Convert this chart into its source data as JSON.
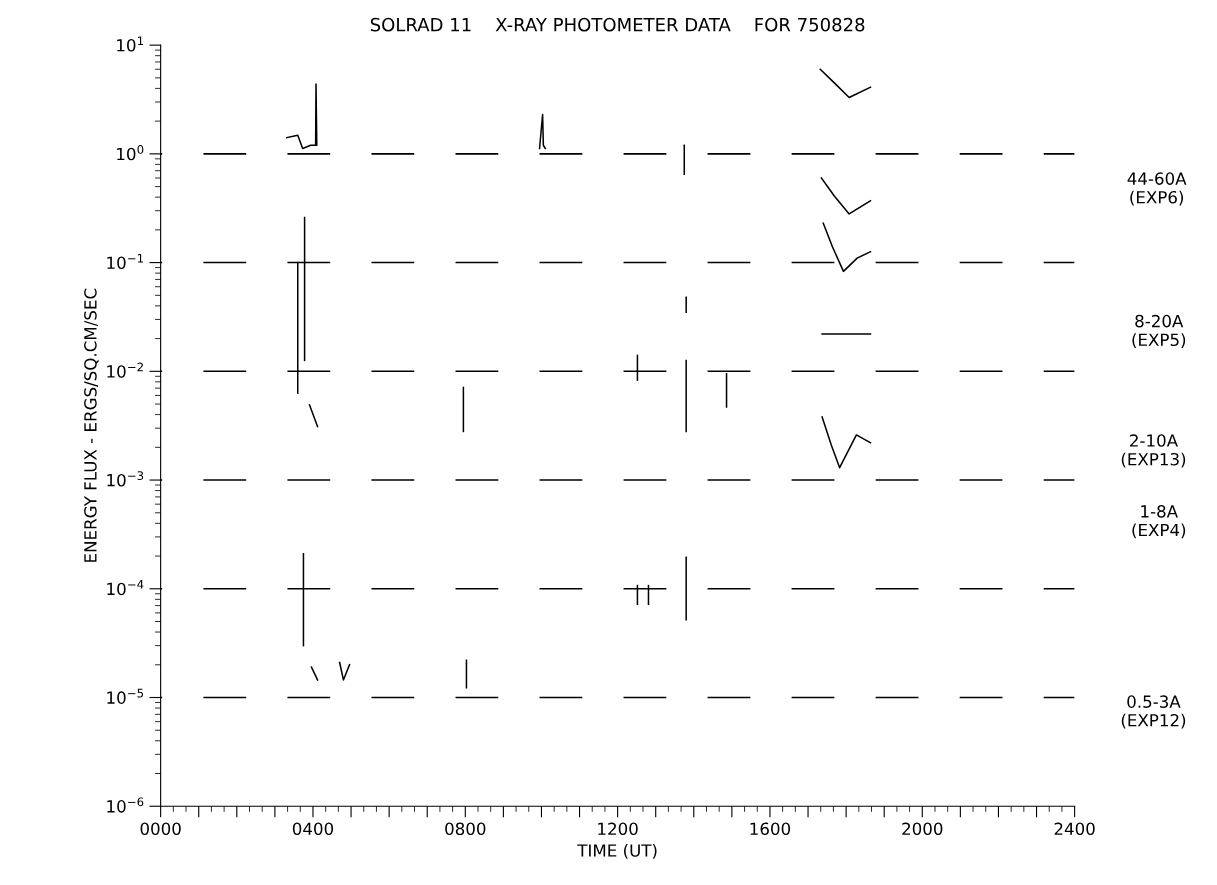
{
  "chart_data": {
    "type": "line",
    "title": "SOLRAD 11    X-RAY PHOTOMETER DATA    FOR 750828",
    "xlabel": "TIME (UT)",
    "ylabel": "ENERGY FLUX - ERGS/SQ.CM/SEC",
    "log": "y",
    "xlim": [
      0,
      2400
    ],
    "xticks": [
      {
        "value": 0,
        "label": "0000"
      },
      {
        "value": 100,
        "label": null
      },
      {
        "value": 200,
        "label": null
      },
      {
        "value": 300,
        "label": null
      },
      {
        "value": 400,
        "label": "0400"
      },
      {
        "value": 500,
        "label": null
      },
      {
        "value": 600,
        "label": null
      },
      {
        "value": 700,
        "label": null
      },
      {
        "value": 800,
        "label": "0800"
      },
      {
        "value": 900,
        "label": null
      },
      {
        "value": 1000,
        "label": null
      },
      {
        "value": 1100,
        "label": null
      },
      {
        "value": 1200,
        "label": "1200"
      },
      {
        "value": 1300,
        "label": null
      },
      {
        "value": 1400,
        "label": null
      },
      {
        "value": 1500,
        "label": null
      },
      {
        "value": 1600,
        "label": "1600"
      },
      {
        "value": 1700,
        "label": null
      },
      {
        "value": 1800,
        "label": null
      },
      {
        "value": 1900,
        "label": null
      },
      {
        "value": 2000,
        "label": "2000"
      },
      {
        "value": 2100,
        "label": null
      },
      {
        "value": 2200,
        "label": null
      },
      {
        "value": 2300,
        "label": null
      },
      {
        "value": 2400,
        "label": "2400"
      }
    ],
    "ylim": [
      1e-06,
      10
    ],
    "yticks": [
      {
        "value": 1e-06,
        "label": "10$^{−6}$"
      },
      {
        "value": 1e-05,
        "label": "10$^{−5}$"
      },
      {
        "value": 0.0001,
        "label": "10$^{−4}$"
      },
      {
        "value": 0.001,
        "label": "10$^{−3}$"
      },
      {
        "value": 0.01,
        "label": "10$^{−2}$"
      },
      {
        "value": 0.1,
        "label": "10$^{−1}$"
      },
      {
        "value": 1,
        "label": "10$^{0}$"
      },
      {
        "value": 10,
        "label": "10$^{1}$"
      }
    ],
    "ref_lines": [
      {
        "axis": "y",
        "value": 1,
        "color": "#000000",
        "line_style": "dashed"
      },
      {
        "axis": "y",
        "value": 0.1,
        "color": "#000000",
        "line_style": "dashed"
      },
      {
        "axis": "y",
        "value": 0.01,
        "color": "#000000",
        "line_style": "dashed"
      },
      {
        "axis": "y",
        "value": 0.001,
        "color": "#000000",
        "line_style": "dashed"
      },
      {
        "axis": "y",
        "value": 0.0001,
        "color": "#000000",
        "line_style": "dashed"
      },
      {
        "axis": "y",
        "value": 1e-05,
        "color": "#000000",
        "line_style": "dashed"
      }
    ],
    "annotations": [
      "44-60A\n(EXP6)",
      "8-20A\n(EXP5)",
      "2-10A\n(EXP13)",
      "1-8A\n(EXP4)",
      "0.5-3A\n(EXP12)"
    ],
    "series": [
      {
        "color": "#000000",
        "x": [
          331,
          360,
          373,
          394,
          407,
          408,
          410
        ],
        "values": [
          1.41,
          1.48,
          1.12,
          1.2,
          1.2,
          4.4,
          1.2
        ]
      },
      {
        "color": "#000000",
        "x": [
          995,
          1003,
          1005,
          1010
        ],
        "values": [
          1.12,
          2.3,
          1.2,
          1.12
        ]
      },
      {
        "color": "#000000",
        "x": [
          1375,
          1375
        ],
        "values": [
          1.2,
          0.65
        ]
      },
      {
        "color": "#000000",
        "x": [
          1732,
          1769,
          1808,
          1864
        ],
        "values": [
          6.0,
          4.5,
          3.3,
          4.1
        ]
      },
      {
        "color": "#000000",
        "x": [
          1735,
          1769,
          1808,
          1864
        ],
        "values": [
          0.6,
          0.41,
          0.28,
          0.37
        ]
      },
      {
        "color": "#000000",
        "x": [
          1740,
          1764,
          1793,
          1829,
          1864
        ],
        "values": [
          0.23,
          0.14,
          0.083,
          0.11,
          0.126
        ]
      },
      {
        "color": "#000000",
        "x": [
          1737,
          1864
        ],
        "values": [
          0.022,
          0.022
        ]
      },
      {
        "color": "#000000",
        "x": [
          1737,
          1761,
          1783,
          1827,
          1864
        ],
        "values": [
          0.0038,
          0.0021,
          0.0013,
          0.0026,
          0.0022
        ]
      },
      {
        "color": "#000000",
        "x": [
          378,
          378
        ],
        "values": [
          0.26,
          0.0126
        ]
      },
      {
        "color": "#000000",
        "x": [
          360,
          360
        ],
        "values": [
          0.1,
          0.0063
        ]
      },
      {
        "color": "#000000",
        "x": [
          391,
          412
        ],
        "values": [
          0.0049,
          0.0031
        ]
      },
      {
        "color": "#000000",
        "x": [
          1380,
          1380
        ],
        "values": [
          0.048,
          0.035
        ]
      },
      {
        "color": "#000000",
        "x": [
          1380,
          1380
        ],
        "values": [
          0.0126,
          0.0028
        ]
      },
      {
        "color": "#000000",
        "x": [
          795,
          795
        ],
        "values": [
          0.0071,
          0.0028
        ]
      },
      {
        "color": "#000000",
        "x": [
          1252,
          1252
        ],
        "values": [
          0.014,
          0.0083
        ]
      },
      {
        "color": "#000000",
        "x": [
          1486,
          1486
        ],
        "values": [
          0.0095,
          0.0047
        ]
      },
      {
        "color": "#000000",
        "x": [
          375,
          375
        ],
        "values": [
          0.00021,
          3e-05
        ]
      },
      {
        "color": "#000000",
        "x": [
          1380,
          1380
        ],
        "values": [
          0.000195,
          5.2e-05
        ]
      },
      {
        "color": "#000000",
        "x": [
          1252,
          1252
        ],
        "values": [
          0.000107,
          7.2e-05
        ]
      },
      {
        "color": "#000000",
        "x": [
          1281,
          1281
        ],
        "values": [
          0.000107,
          7.2e-05
        ]
      },
      {
        "color": "#000000",
        "x": [
          803,
          803
        ],
        "values": [
          2.2e-05,
          1.23e-05
        ]
      },
      {
        "color": "#000000",
        "x": [
          396,
          412
        ],
        "values": [
          1.9e-05,
          1.45e-05
        ]
      },
      {
        "color": "#000000",
        "x": [
          470,
          480,
          496
        ],
        "values": [
          2.1e-05,
          1.45e-05,
          2e-05
        ]
      }
    ]
  }
}
